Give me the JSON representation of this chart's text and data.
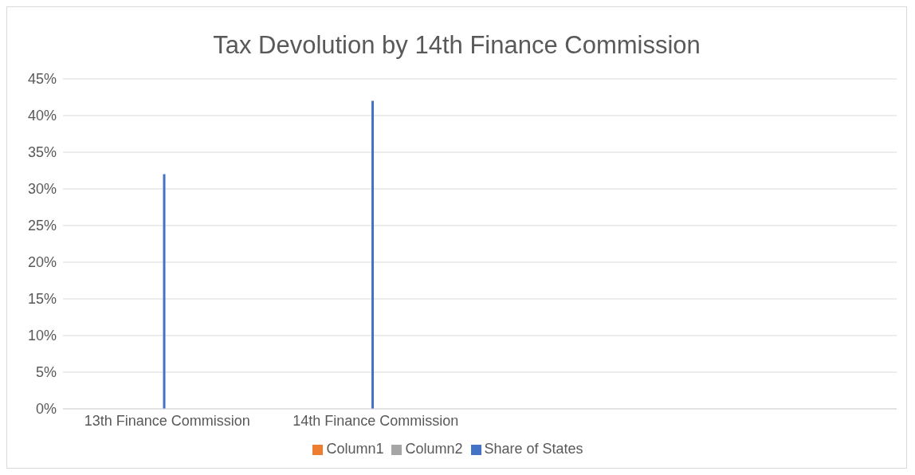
{
  "chart_data": {
    "type": "bar",
    "title": "Tax Devolution by 14th Finance Commission",
    "categories": [
      "13th Finance Commission",
      "14th Finance Commission",
      null,
      null
    ],
    "series": [
      {
        "name": "Share of States",
        "color": "#4472c4",
        "values": [
          32,
          42,
          null,
          null
        ]
      },
      {
        "name": "Column1",
        "color": "#ed7d31",
        "values": [
          null,
          null,
          null,
          null
        ]
      },
      {
        "name": "Column2",
        "color": "#a5a5a5",
        "values": [
          null,
          null,
          null,
          null
        ]
      }
    ],
    "ylim": [
      0,
      45
    ],
    "yticks": [
      {
        "value": 0,
        "label": "0%"
      },
      {
        "value": 5,
        "label": "5%"
      },
      {
        "value": 10,
        "label": "10%"
      },
      {
        "value": 15,
        "label": "15%"
      },
      {
        "value": 20,
        "label": "20%"
      },
      {
        "value": 25,
        "label": "25%"
      },
      {
        "value": 30,
        "label": "30%"
      },
      {
        "value": 35,
        "label": "35%"
      },
      {
        "value": 40,
        "label": "40%"
      },
      {
        "value": 45,
        "label": "45%"
      }
    ],
    "grid": "y",
    "legend": "bottom"
  }
}
